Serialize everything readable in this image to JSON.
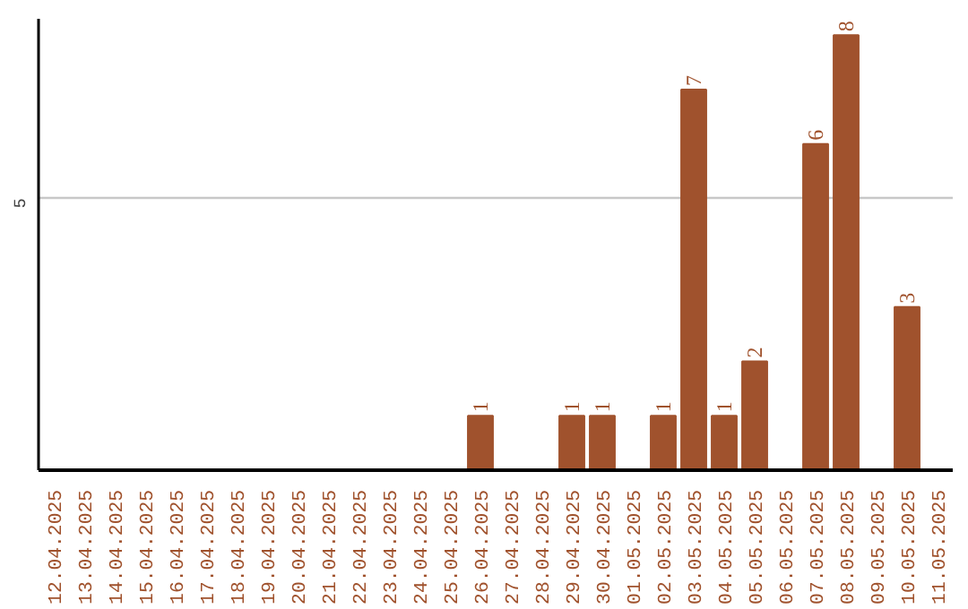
{
  "chart_data": {
    "type": "bar",
    "categories": [
      "12.04.2025",
      "13.04.2025",
      "14.04.2025",
      "15.04.2025",
      "16.04.2025",
      "17.04.2025",
      "18.04.2025",
      "19.04.2025",
      "20.04.2025",
      "21.04.2025",
      "22.04.2025",
      "23.04.2025",
      "24.04.2025",
      "25.04.2025",
      "26.04.2025",
      "27.04.2025",
      "28.04.2025",
      "29.04.2025",
      "30.04.2025",
      "01.05.2025",
      "02.05.2025",
      "03.05.2025",
      "04.05.2025",
      "05.05.2025",
      "06.05.2025",
      "07.05.2025",
      "08.05.2025",
      "09.05.2025",
      "10.05.2025",
      "11.05.2025"
    ],
    "values": [
      null,
      null,
      null,
      null,
      null,
      null,
      null,
      null,
      null,
      null,
      null,
      null,
      null,
      null,
      1,
      null,
      null,
      1,
      1,
      null,
      1,
      7,
      1,
      2,
      null,
      6,
      8,
      null,
      3,
      null
    ],
    "color": "#a0522d",
    "data_labels": true,
    "ylim": [
      0,
      8.3
    ],
    "yticks": [
      5
    ],
    "grid": "y"
  }
}
